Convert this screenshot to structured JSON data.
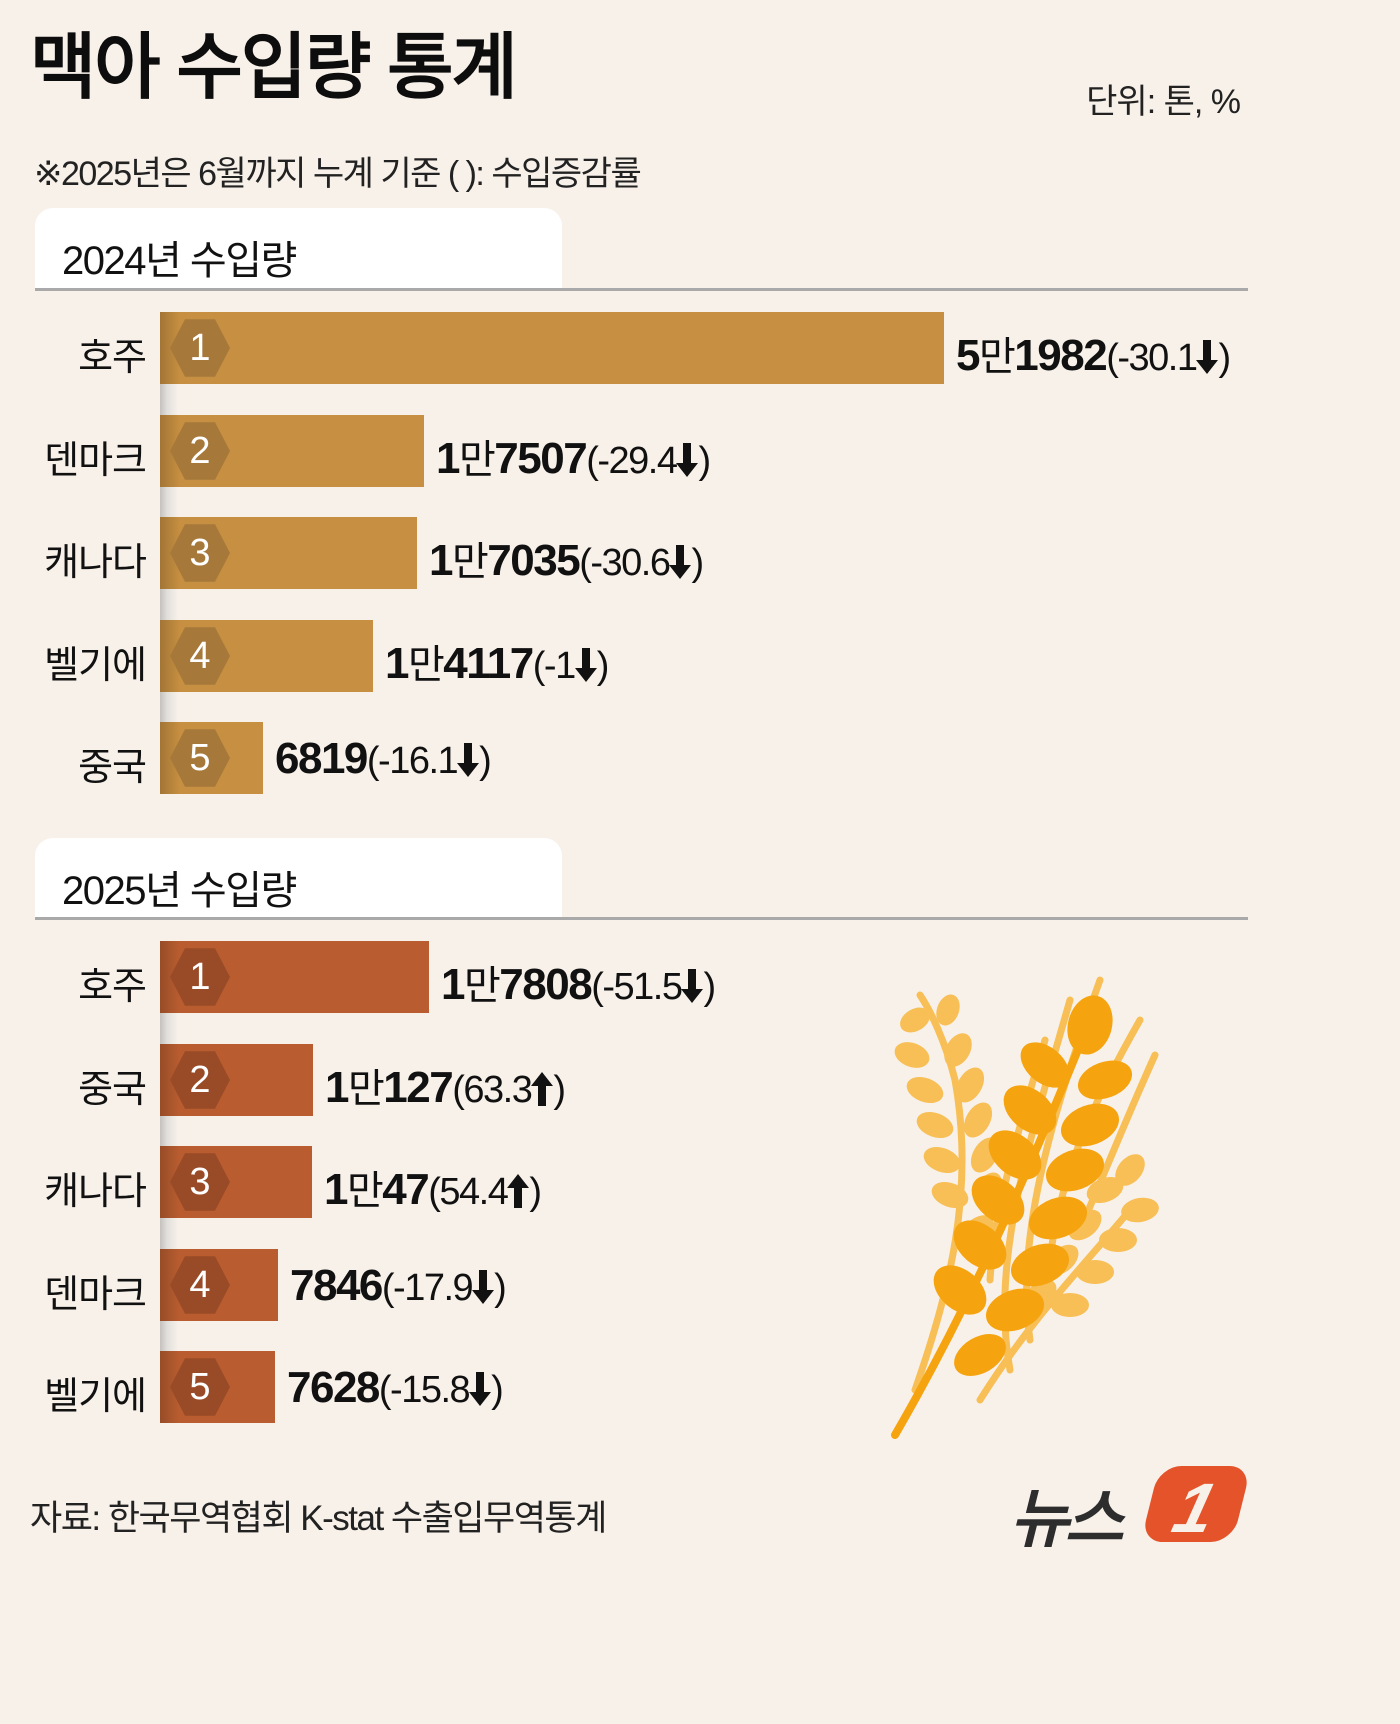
{
  "header": {
    "title": "맥아 수입량 통계",
    "unit": "단위: 톤, %",
    "subtitle": "※2025년은 6월까지 누계 기준  ( ): 수입증감률"
  },
  "sections": [
    {
      "label": "2024년 수입량",
      "rows": [
        {
          "rank": "1",
          "country": "호주",
          "value_man": "5",
          "man": "만",
          "value_rest": "1982",
          "change": "(-30.1",
          "direction": "down",
          "close": ")"
        },
        {
          "rank": "2",
          "country": "덴마크",
          "value_man": "1",
          "man": "만",
          "value_rest": "7507",
          "change": "(-29.4",
          "direction": "down",
          "close": ")"
        },
        {
          "rank": "3",
          "country": "캐나다",
          "value_man": "1",
          "man": "만",
          "value_rest": "7035",
          "change": "(-30.6",
          "direction": "down",
          "close": ")"
        },
        {
          "rank": "4",
          "country": "벨기에",
          "value_man": "1",
          "man": "만",
          "value_rest": "4117",
          "change": "(-1",
          "direction": "down",
          "close": ")"
        },
        {
          "rank": "5",
          "country": "중국",
          "value_man": "",
          "man": "",
          "value_rest": "6819",
          "change": "(-16.1",
          "direction": "down",
          "close": ")"
        }
      ]
    },
    {
      "label": "2025년 수입량",
      "rows": [
        {
          "rank": "1",
          "country": "호주",
          "value_man": "1",
          "man": "만",
          "value_rest": "7808",
          "change": "(-51.5",
          "direction": "down",
          "close": ")"
        },
        {
          "rank": "2",
          "country": "중국",
          "value_man": "1",
          "man": "만",
          "value_rest": "127",
          "change": "(63.3",
          "direction": "up",
          "close": ")"
        },
        {
          "rank": "3",
          "country": "캐나다",
          "value_man": "1",
          "man": "만",
          "value_rest": "47",
          "change": "(54.4",
          "direction": "up",
          "close": ")"
        },
        {
          "rank": "4",
          "country": "덴마크",
          "value_man": "",
          "man": "",
          "value_rest": "7846",
          "change": "(-17.9",
          "direction": "down",
          "close": ")"
        },
        {
          "rank": "5",
          "country": "벨기에",
          "value_man": "",
          "man": "",
          "value_rest": "7628",
          "change": "(-15.8",
          "direction": "down",
          "close": ")"
        }
      ]
    }
  ],
  "footer": {
    "source": "자료: 한국무역협회 K-stat 수출입무역통계",
    "logo_text": "뉴스",
    "logo_badge": "1"
  },
  "colors": {
    "background": "#f8f1ea",
    "bar_2024": "#c68f41",
    "badge_2024": "#a6783a",
    "bar_2025": "#b95d30",
    "badge_2025": "#994b27",
    "logo_accent": "#e4532a",
    "wheat_dark": "#f5a30f",
    "wheat_light": "#f7bf55"
  },
  "chart_data": [
    {
      "type": "bar",
      "orientation": "horizontal",
      "title": "2024년 수입량",
      "categories": [
        "호주",
        "덴마크",
        "캐나다",
        "벨기에",
        "중국"
      ],
      "values": [
        51982,
        17507,
        17035,
        14117,
        6819
      ],
      "change_pct": [
        -30.1,
        -29.4,
        -30.6,
        -1,
        -16.1
      ],
      "unit": "톤, %"
    },
    {
      "type": "bar",
      "orientation": "horizontal",
      "title": "2025년 수입량 (6월까지 누계)",
      "categories": [
        "호주",
        "중국",
        "캐나다",
        "덴마크",
        "벨기에"
      ],
      "values": [
        17808,
        10127,
        10047,
        7846,
        7628
      ],
      "change_pct": [
        -51.5,
        63.3,
        54.4,
        -17.9,
        -15.8
      ],
      "unit": "톤, %"
    }
  ]
}
